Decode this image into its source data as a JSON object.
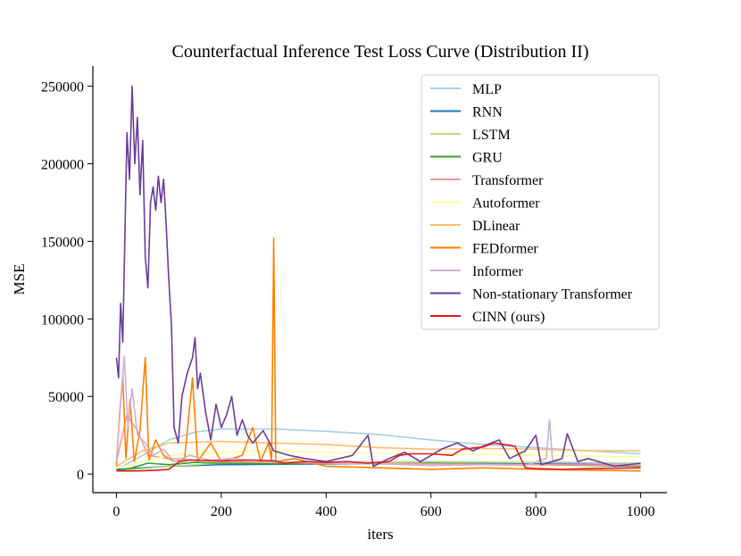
{
  "chart_data": {
    "type": "line",
    "title": "Counterfactual Inference Test Loss Curve (Distribution II)",
    "xlabel": "iters",
    "ylabel": "MSE",
    "xlim": [
      -45,
      1050
    ],
    "ylim": [
      -12000,
      263000
    ],
    "xticks": [
      0,
      200,
      400,
      600,
      800,
      1000
    ],
    "yticks": [
      0,
      50000,
      100000,
      150000,
      200000,
      250000
    ],
    "grid": false,
    "legend_position": "top-right",
    "series": [
      {
        "name": "MLP",
        "color": "#a6cee3",
        "points": [
          [
            0,
            3000
          ],
          [
            50,
            12000
          ],
          [
            100,
            22000
          ],
          [
            150,
            27000
          ],
          [
            200,
            29000
          ],
          [
            300,
            29000
          ],
          [
            400,
            27500
          ],
          [
            500,
            25500
          ],
          [
            600,
            22000
          ],
          [
            700,
            19000
          ],
          [
            800,
            17000
          ],
          [
            900,
            15000
          ],
          [
            1000,
            13000
          ]
        ]
      },
      {
        "name": "RNN",
        "color": "#1f78b4",
        "points": [
          [
            0,
            3000
          ],
          [
            100,
            5000
          ],
          [
            200,
            6000
          ],
          [
            400,
            6500
          ],
          [
            600,
            7000
          ],
          [
            800,
            6500
          ],
          [
            1000,
            6000
          ]
        ]
      },
      {
        "name": "LSTM",
        "color": "#b2df8a",
        "points": [
          [
            0,
            2000
          ],
          [
            100,
            5000
          ],
          [
            200,
            7000
          ],
          [
            400,
            7500
          ],
          [
            600,
            8000
          ],
          [
            800,
            7500
          ],
          [
            1000,
            7000
          ]
        ]
      },
      {
        "name": "GRU",
        "color": "#33a02c",
        "points": [
          [
            0,
            2000
          ],
          [
            30,
            4000
          ],
          [
            60,
            7000
          ],
          [
            100,
            6000
          ],
          [
            150,
            7500
          ],
          [
            200,
            7000
          ],
          [
            300,
            6500
          ],
          [
            400,
            7000
          ],
          [
            500,
            6500
          ],
          [
            600,
            7000
          ],
          [
            800,
            6000
          ],
          [
            1000,
            5000
          ]
        ]
      },
      {
        "name": "Transformer",
        "color": "#fb9a99",
        "points": [
          [
            0,
            8000
          ],
          [
            20,
            38000
          ],
          [
            40,
            28000
          ],
          [
            60,
            12000
          ],
          [
            100,
            10000
          ],
          [
            200,
            8000
          ],
          [
            400,
            7000
          ],
          [
            600,
            6500
          ],
          [
            800,
            6000
          ],
          [
            1000,
            5500
          ]
        ]
      },
      {
        "name": "Autoformer",
        "color": "#ffff99",
        "points": [
          [
            0,
            4000
          ],
          [
            100,
            12000
          ],
          [
            200,
            14000
          ],
          [
            300,
            15000
          ],
          [
            400,
            14000
          ],
          [
            600,
            13000
          ],
          [
            800,
            12000
          ],
          [
            1000,
            11000
          ]
        ]
      },
      {
        "name": "DLinear",
        "color": "#fdbf6f",
        "points": [
          [
            0,
            5000
          ],
          [
            50,
            15000
          ],
          [
            100,
            20000
          ],
          [
            200,
            21000
          ],
          [
            300,
            20000
          ],
          [
            400,
            19000
          ],
          [
            500,
            17000
          ],
          [
            600,
            16000
          ],
          [
            700,
            16500
          ],
          [
            800,
            16000
          ],
          [
            900,
            15000
          ],
          [
            1000,
            15000
          ]
        ]
      },
      {
        "name": "FEDformer",
        "color": "#ff7f00",
        "points": [
          [
            0,
            5000
          ],
          [
            6,
            38000
          ],
          [
            12,
            63000
          ],
          [
            18,
            10000
          ],
          [
            26,
            48000
          ],
          [
            34,
            8000
          ],
          [
            45,
            28000
          ],
          [
            55,
            75000
          ],
          [
            62,
            9000
          ],
          [
            75,
            22000
          ],
          [
            90,
            12000
          ],
          [
            110,
            8000
          ],
          [
            130,
            10000
          ],
          [
            145,
            62000
          ],
          [
            155,
            8000
          ],
          [
            180,
            20000
          ],
          [
            200,
            8000
          ],
          [
            240,
            12000
          ],
          [
            260,
            30000
          ],
          [
            275,
            8000
          ],
          [
            290,
            20000
          ],
          [
            296,
            9000
          ],
          [
            300,
            152000
          ],
          [
            304,
            8000
          ],
          [
            340,
            10000
          ],
          [
            400,
            5000
          ],
          [
            500,
            4000
          ],
          [
            600,
            3000
          ],
          [
            700,
            4000
          ],
          [
            800,
            3000
          ],
          [
            900,
            2500
          ],
          [
            1000,
            2000
          ]
        ]
      },
      {
        "name": "Informer",
        "color": "#cab2d6",
        "points": [
          [
            0,
            8000
          ],
          [
            8,
            45000
          ],
          [
            15,
            76000
          ],
          [
            22,
            30000
          ],
          [
            30,
            55000
          ],
          [
            40,
            25000
          ],
          [
            55,
            20000
          ],
          [
            70,
            12000
          ],
          [
            90,
            16000
          ],
          [
            110,
            8000
          ],
          [
            140,
            12000
          ],
          [
            180,
            9000
          ],
          [
            220,
            10000
          ],
          [
            300,
            8000
          ],
          [
            400,
            7000
          ],
          [
            500,
            6500
          ],
          [
            600,
            5500
          ],
          [
            700,
            6000
          ],
          [
            780,
            5500
          ],
          [
            820,
            10000
          ],
          [
            826,
            35000
          ],
          [
            832,
            8000
          ],
          [
            900,
            7000
          ],
          [
            1000,
            6000
          ]
        ]
      },
      {
        "name": "Non-stationary Transformer",
        "color": "#6a3d9a",
        "points": [
          [
            0,
            75000
          ],
          [
            4,
            62000
          ],
          [
            8,
            110000
          ],
          [
            12,
            85000
          ],
          [
            16,
            150000
          ],
          [
            20,
            220000
          ],
          [
            25,
            190000
          ],
          [
            30,
            250000
          ],
          [
            35,
            200000
          ],
          [
            40,
            230000
          ],
          [
            45,
            180000
          ],
          [
            50,
            215000
          ],
          [
            55,
            140000
          ],
          [
            60,
            120000
          ],
          [
            65,
            175000
          ],
          [
            70,
            185000
          ],
          [
            75,
            170000
          ],
          [
            80,
            192000
          ],
          [
            85,
            175000
          ],
          [
            90,
            190000
          ],
          [
            95,
            160000
          ],
          [
            100,
            125000
          ],
          [
            105,
            95000
          ],
          [
            110,
            30000
          ],
          [
            118,
            20000
          ],
          [
            125,
            50000
          ],
          [
            135,
            65000
          ],
          [
            145,
            75000
          ],
          [
            150,
            88000
          ],
          [
            155,
            55000
          ],
          [
            160,
            65000
          ],
          [
            170,
            40000
          ],
          [
            180,
            22000
          ],
          [
            190,
            45000
          ],
          [
            200,
            30000
          ],
          [
            210,
            38000
          ],
          [
            220,
            50000
          ],
          [
            230,
            25000
          ],
          [
            240,
            35000
          ],
          [
            250,
            25000
          ],
          [
            260,
            20000
          ],
          [
            280,
            28000
          ],
          [
            300,
            15000
          ],
          [
            330,
            12000
          ],
          [
            360,
            10000
          ],
          [
            400,
            8000
          ],
          [
            450,
            12000
          ],
          [
            480,
            25000
          ],
          [
            490,
            5000
          ],
          [
            520,
            10000
          ],
          [
            550,
            14000
          ],
          [
            580,
            8000
          ],
          [
            600,
            12000
          ],
          [
            620,
            16000
          ],
          [
            650,
            20000
          ],
          [
            680,
            15000
          ],
          [
            700,
            18000
          ],
          [
            730,
            22000
          ],
          [
            750,
            10000
          ],
          [
            780,
            15000
          ],
          [
            800,
            25000
          ],
          [
            810,
            6000
          ],
          [
            850,
            10000
          ],
          [
            860,
            26000
          ],
          [
            880,
            8000
          ],
          [
            900,
            10000
          ],
          [
            950,
            5000
          ],
          [
            1000,
            7000
          ]
        ]
      },
      {
        "name": "CINN (ours)",
        "color": "#e31a1c",
        "points": [
          [
            0,
            2000
          ],
          [
            40,
            2000
          ],
          [
            80,
            2500
          ],
          [
            100,
            3000
          ],
          [
            120,
            8000
          ],
          [
            140,
            9000
          ],
          [
            200,
            8500
          ],
          [
            260,
            9000
          ],
          [
            300,
            8500
          ],
          [
            320,
            7000
          ],
          [
            360,
            8000
          ],
          [
            400,
            7500
          ],
          [
            440,
            8000
          ],
          [
            480,
            7000
          ],
          [
            520,
            8000
          ],
          [
            540,
            12000
          ],
          [
            560,
            13000
          ],
          [
            600,
            13000
          ],
          [
            640,
            12000
          ],
          [
            660,
            16000
          ],
          [
            700,
            17500
          ],
          [
            720,
            20000
          ],
          [
            740,
            19000
          ],
          [
            760,
            18000
          ],
          [
            780,
            4000
          ],
          [
            800,
            3500
          ],
          [
            850,
            3000
          ],
          [
            900,
            3500
          ],
          [
            1000,
            4000
          ]
        ]
      }
    ]
  }
}
